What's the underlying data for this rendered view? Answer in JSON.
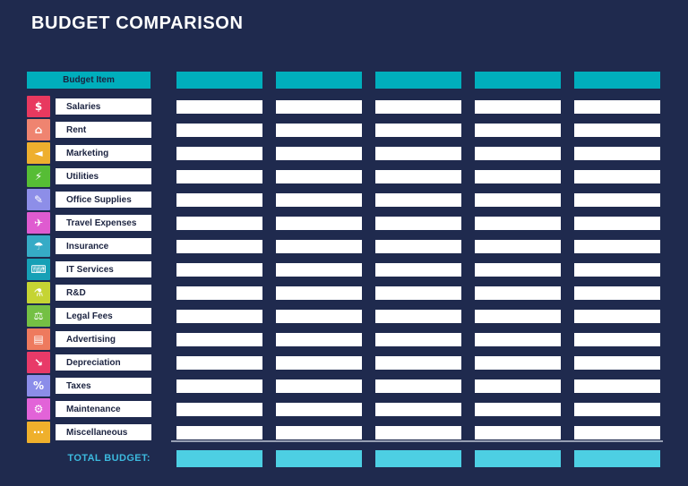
{
  "page": {
    "title": "BUDGET COMPARISON"
  },
  "theme": {
    "background": "#1f2a4e",
    "title_text": "#ffffff",
    "header_cell": "#00aebc",
    "cell": "#ffffff",
    "label_text": "#1b2340",
    "total_cell": "#4dcfe3",
    "total_text": "#3cb9de",
    "separator": "#98a0b4"
  },
  "table": {
    "columns": 5,
    "header": {
      "label": "Budget Item"
    },
    "rows": [
      {
        "label": "Salaries",
        "icon": "salaries-money-icon",
        "glyph": "$",
        "color": "#e8395f",
        "values": [
          "",
          "",
          "",
          "",
          ""
        ]
      },
      {
        "label": "Rent",
        "icon": "rent-house-icon",
        "glyph": "⌂",
        "color": "#ef8470",
        "values": [
          "",
          "",
          "",
          "",
          ""
        ]
      },
      {
        "label": "Marketing",
        "icon": "marketing-megaphone-icon",
        "glyph": "◄",
        "color": "#eeaf2e",
        "values": [
          "",
          "",
          "",
          "",
          ""
        ]
      },
      {
        "label": "Utilities",
        "icon": "utilities-bolt-icon",
        "glyph": "⚡",
        "color": "#56bd35",
        "values": [
          "",
          "",
          "",
          "",
          ""
        ]
      },
      {
        "label": "Office Supplies",
        "icon": "office-supplies-pencil-icon",
        "glyph": "✎",
        "color": "#8d8ee8",
        "values": [
          "",
          "",
          "",
          "",
          ""
        ]
      },
      {
        "label": "Travel Expenses",
        "icon": "travel-plane-icon",
        "glyph": "✈",
        "color": "#df5bd0",
        "values": [
          "",
          "",
          "",
          "",
          ""
        ]
      },
      {
        "label": "Insurance",
        "icon": "insurance-umbrella-icon",
        "glyph": "☂",
        "color": "#36abc6",
        "values": [
          "",
          "",
          "",
          "",
          ""
        ]
      },
      {
        "label": "IT Services",
        "icon": "it-services-laptop-icon",
        "glyph": "⌨",
        "color": "#16a0b6",
        "values": [
          "",
          "",
          "",
          "",
          ""
        ]
      },
      {
        "label": "R&D",
        "icon": "rnd-microscope-icon",
        "glyph": "⚗",
        "color": "#c5d433",
        "values": [
          "",
          "",
          "",
          "",
          ""
        ]
      },
      {
        "label": "Legal Fees",
        "icon": "legal-scales-icon",
        "glyph": "⚖",
        "color": "#74c044",
        "values": [
          "",
          "",
          "",
          "",
          ""
        ]
      },
      {
        "label": "Advertising",
        "icon": "advertising-newspaper-icon",
        "glyph": "▤",
        "color": "#ee7a5e",
        "values": [
          "",
          "",
          "",
          "",
          ""
        ]
      },
      {
        "label": "Depreciation",
        "icon": "depreciation-key-icon",
        "glyph": "↘",
        "color": "#e83a68",
        "values": [
          "",
          "",
          "",
          "",
          ""
        ]
      },
      {
        "label": "Taxes",
        "icon": "taxes-calculator-icon",
        "glyph": "%",
        "color": "#8b8de9",
        "values": [
          "",
          "",
          "",
          "",
          ""
        ]
      },
      {
        "label": "Maintenance",
        "icon": "maintenance-gear-icon",
        "glyph": "⚙",
        "color": "#e263d8",
        "values": [
          "",
          "",
          "",
          "",
          ""
        ]
      },
      {
        "label": "Miscellaneous",
        "icon": "miscellaneous-folder-icon",
        "glyph": "⋯",
        "color": "#efb02c",
        "values": [
          "",
          "",
          "",
          "",
          ""
        ]
      }
    ],
    "footer": {
      "label": "TOTAL BUDGET:",
      "values": [
        "",
        "",
        "",
        "",
        ""
      ]
    }
  }
}
